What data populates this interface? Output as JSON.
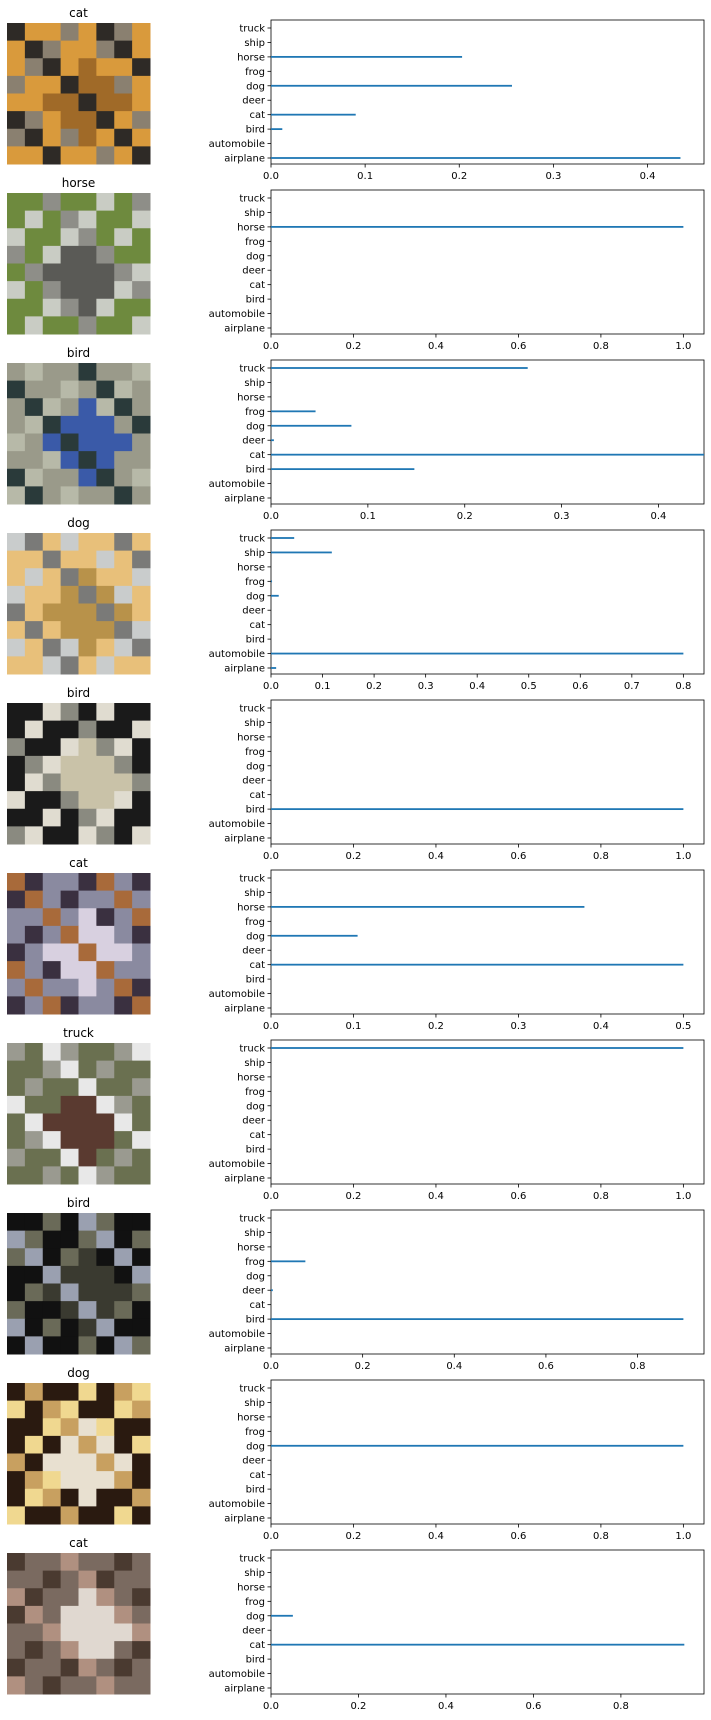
{
  "classes": [
    "airplane",
    "automobile",
    "bird",
    "cat",
    "deer",
    "dog",
    "frog",
    "horse",
    "ship",
    "truck"
  ],
  "chart_data": [
    {
      "type": "bar",
      "orientation": "horizontal",
      "image_title": "cat",
      "thumbnail": {
        "description_colors": [
          "#d99a3c",
          "#a06a28",
          "#2e2a26",
          "#8a8070"
        ]
      },
      "categories": [
        "airplane",
        "automobile",
        "bird",
        "cat",
        "deer",
        "dog",
        "frog",
        "horse",
        "ship",
        "truck"
      ],
      "values": [
        0.435,
        0.0,
        0.012,
        0.09,
        0.0,
        0.256,
        0.0,
        0.203,
        0.0,
        0.0
      ],
      "xlim": [
        0,
        0.46
      ],
      "xticks": [
        0.0,
        0.1,
        0.2,
        0.3,
        0.4
      ],
      "xtick_labels": [
        "0.0",
        "0.1",
        "0.2",
        "0.3",
        "0.4"
      ]
    },
    {
      "type": "bar",
      "orientation": "horizontal",
      "image_title": "horse",
      "thumbnail": {
        "description_colors": [
          "#6e8a3e",
          "#5a5a56",
          "#8e8e88",
          "#c9ccc4"
        ]
      },
      "categories": [
        "airplane",
        "automobile",
        "bird",
        "cat",
        "deer",
        "dog",
        "frog",
        "horse",
        "ship",
        "truck"
      ],
      "values": [
        0.0,
        0.0,
        0.0,
        0.0,
        0.0,
        0.0,
        0.0,
        1.0,
        0.0,
        0.0
      ],
      "xlim": [
        0,
        1.05
      ],
      "xticks": [
        0.0,
        0.2,
        0.4,
        0.6,
        0.8,
        1.0
      ],
      "xtick_labels": [
        "0.0",
        "0.2",
        "0.4",
        "0.6",
        "0.8",
        "1.0"
      ]
    },
    {
      "type": "bar",
      "orientation": "horizontal",
      "image_title": "bird",
      "thumbnail": {
        "description_colors": [
          "#9a9a8a",
          "#3a5aa8",
          "#2a3a3a",
          "#b7b9a8"
        ]
      },
      "categories": [
        "airplane",
        "automobile",
        "bird",
        "cat",
        "deer",
        "dog",
        "frog",
        "horse",
        "ship",
        "truck"
      ],
      "values": [
        0.0,
        0.0,
        0.148,
        0.447,
        0.003,
        0.083,
        0.046,
        0.0,
        0.0,
        0.265
      ],
      "xlim": [
        0,
        0.447
      ],
      "xticks": [
        0.0,
        0.1,
        0.2,
        0.3,
        0.4
      ],
      "xtick_labels": [
        "0.0",
        "0.1",
        "0.2",
        "0.3",
        "0.4"
      ]
    },
    {
      "type": "bar",
      "orientation": "horizontal",
      "image_title": "dog",
      "thumbnail": {
        "description_colors": [
          "#e8c07a",
          "#b8924a",
          "#7a7a78",
          "#c9cccc"
        ]
      },
      "categories": [
        "airplane",
        "automobile",
        "bird",
        "cat",
        "deer",
        "dog",
        "frog",
        "horse",
        "ship",
        "truck"
      ],
      "values": [
        0.01,
        0.8,
        0.0,
        0.0,
        0.0,
        0.015,
        0.002,
        0.0,
        0.118,
        0.045
      ],
      "xlim": [
        0,
        0.84
      ],
      "xticks": [
        0.0,
        0.1,
        0.2,
        0.3,
        0.4,
        0.5,
        0.6,
        0.7,
        0.8
      ],
      "xtick_labels": [
        "0.0",
        "0.1",
        "0.2",
        "0.3",
        "0.4",
        "0.5",
        "0.6",
        "0.7",
        "0.8"
      ]
    },
    {
      "type": "bar",
      "orientation": "horizontal",
      "image_title": "bird",
      "thumbnail": {
        "description_colors": [
          "#1a1a1a",
          "#c9c2a8",
          "#8a8a80",
          "#e0dcd0"
        ]
      },
      "categories": [
        "airplane",
        "automobile",
        "bird",
        "cat",
        "deer",
        "dog",
        "frog",
        "horse",
        "ship",
        "truck"
      ],
      "values": [
        0.0,
        0.0,
        1.0,
        0.0,
        0.0,
        0.0,
        0.0,
        0.0,
        0.0,
        0.0
      ],
      "xlim": [
        0,
        1.05
      ],
      "xticks": [
        0.0,
        0.2,
        0.4,
        0.6,
        0.8,
        1.0
      ],
      "xtick_labels": [
        "0.0",
        "0.2",
        "0.4",
        "0.6",
        "0.8",
        "1.0"
      ]
    },
    {
      "type": "bar",
      "orientation": "horizontal",
      "image_title": "cat",
      "thumbnail": {
        "description_colors": [
          "#8a8aa0",
          "#d8d0e0",
          "#a86a3a",
          "#3a3040"
        ]
      },
      "categories": [
        "airplane",
        "automobile",
        "bird",
        "cat",
        "deer",
        "dog",
        "frog",
        "horse",
        "ship",
        "truck"
      ],
      "values": [
        0.0,
        0.0,
        0.0,
        0.5,
        0.0,
        0.105,
        0.0,
        0.38,
        0.0,
        0.0
      ],
      "xlim": [
        0,
        0.525
      ],
      "xticks": [
        0.0,
        0.1,
        0.2,
        0.3,
        0.4,
        0.5
      ],
      "xtick_labels": [
        "0.0",
        "0.1",
        "0.2",
        "0.3",
        "0.4",
        "0.5"
      ]
    },
    {
      "type": "bar",
      "orientation": "horizontal",
      "image_title": "truck",
      "thumbnail": {
        "description_colors": [
          "#6a7050",
          "#5a3a30",
          "#e8e8e8",
          "#9a9a90"
        ]
      },
      "categories": [
        "airplane",
        "automobile",
        "bird",
        "cat",
        "deer",
        "dog",
        "frog",
        "horse",
        "ship",
        "truck"
      ],
      "values": [
        0.0,
        0.0,
        0.0,
        0.0,
        0.0,
        0.0,
        0.0,
        0.0,
        0.0,
        1.0
      ],
      "xlim": [
        0,
        1.05
      ],
      "xticks": [
        0.0,
        0.2,
        0.4,
        0.6,
        0.8,
        1.0
      ],
      "xtick_labels": [
        "0.0",
        "0.2",
        "0.4",
        "0.6",
        "0.8",
        "1.0"
      ]
    },
    {
      "type": "bar",
      "orientation": "horizontal",
      "image_title": "bird",
      "thumbnail": {
        "description_colors": [
          "#111111",
          "#3a3a30",
          "#9aa0b0",
          "#6a6a58"
        ]
      },
      "categories": [
        "airplane",
        "automobile",
        "bird",
        "cat",
        "deer",
        "dog",
        "frog",
        "horse",
        "ship",
        "truck"
      ],
      "values": [
        0.0,
        0.0,
        0.9,
        0.0,
        0.004,
        0.0,
        0.075,
        0.0,
        0.0,
        0.0
      ],
      "xlim": [
        0,
        0.945
      ],
      "xticks": [
        0.0,
        0.2,
        0.4,
        0.6,
        0.8
      ],
      "xtick_labels": [
        "0.0",
        "0.2",
        "0.4",
        "0.6",
        "0.8"
      ]
    },
    {
      "type": "bar",
      "orientation": "horizontal",
      "image_title": "dog",
      "thumbnail": {
        "description_colors": [
          "#2a1a10",
          "#e8e0d0",
          "#c8a060",
          "#f0d890"
        ]
      },
      "categories": [
        "airplane",
        "automobile",
        "bird",
        "cat",
        "deer",
        "dog",
        "frog",
        "horse",
        "ship",
        "truck"
      ],
      "values": [
        0.0,
        0.0,
        0.0,
        0.0,
        0.0,
        1.0,
        0.0,
        0.0,
        0.0,
        0.0
      ],
      "xlim": [
        0,
        1.05
      ],
      "xticks": [
        0.0,
        0.2,
        0.4,
        0.6,
        0.8,
        1.0
      ],
      "xtick_labels": [
        "0.0",
        "0.2",
        "0.4",
        "0.6",
        "0.8",
        "1.0"
      ]
    },
    {
      "type": "bar",
      "orientation": "horizontal",
      "image_title": "cat",
      "thumbnail": {
        "description_colors": [
          "#7a6a60",
          "#e0d8d0",
          "#b09080",
          "#4a3a30"
        ]
      },
      "categories": [
        "airplane",
        "automobile",
        "bird",
        "cat",
        "deer",
        "dog",
        "frog",
        "horse",
        "ship",
        "truck"
      ],
      "values": [
        0.0,
        0.0,
        0.0,
        0.945,
        0.0,
        0.05,
        0.0,
        0.0,
        0.0,
        0.0
      ],
      "xlim": [
        0,
        0.99
      ],
      "xticks": [
        0.0,
        0.2,
        0.4,
        0.6,
        0.8
      ],
      "xtick_labels": [
        "0.0",
        "0.2",
        "0.4",
        "0.6",
        "0.8"
      ]
    }
  ]
}
